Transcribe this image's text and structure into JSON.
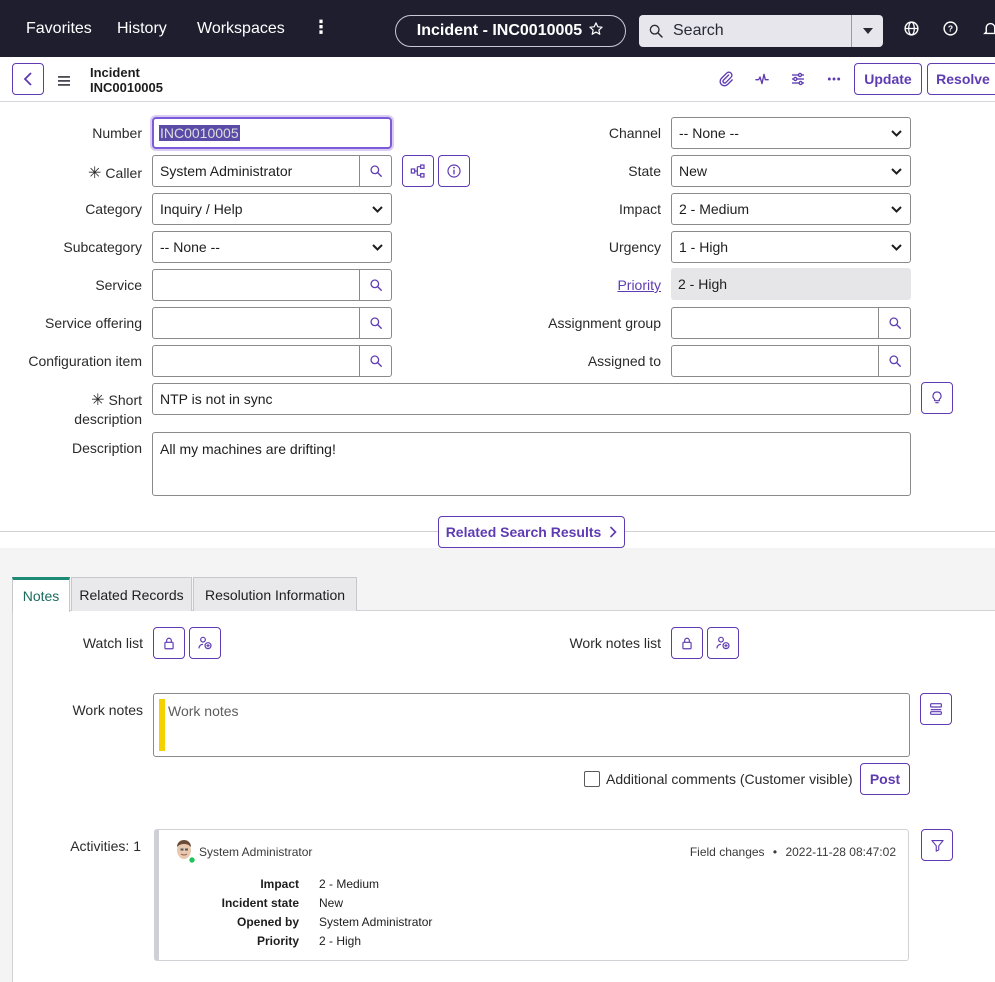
{
  "nav": {
    "favorites": "Favorites",
    "history": "History",
    "workspaces": "Workspaces",
    "more": "⋮",
    "record_pill": "Incident - INC0010005",
    "search_placeholder": "Search"
  },
  "subbar": {
    "record_type": "Incident",
    "record_number": "INC0010005",
    "update_label": "Update",
    "resolve_label": "Resolve"
  },
  "form": {
    "number_label": "Number",
    "number_value": "INC0010005",
    "caller_label": "Caller",
    "caller_value": "System Administrator",
    "category_label": "Category",
    "category_value": "Inquiry / Help",
    "subcategory_label": "Subcategory",
    "subcategory_value": "-- None --",
    "service_label": "Service",
    "service_value": "",
    "service_offering_label": "Service offering",
    "service_offering_value": "",
    "ci_label": "Configuration item",
    "ci_value": "",
    "channel_label": "Channel",
    "channel_value": "-- None --",
    "state_label": "State",
    "state_value": "New",
    "impact_label": "Impact",
    "impact_value": "2 - Medium",
    "urgency_label": "Urgency",
    "urgency_value": "1 - High",
    "priority_label": "Priority",
    "priority_value": "2 - High",
    "assignment_group_label": "Assignment group",
    "assignment_group_value": "",
    "assigned_to_label": "Assigned to",
    "assigned_to_value": "",
    "short_desc_label_1": "Short",
    "short_desc_label_2": "description",
    "short_desc_value": "NTP is not in sync",
    "description_label": "Description",
    "description_value": "All my machines are drifting!",
    "required_mark": "✳"
  },
  "related_search_label": "Related Search Results",
  "tabs": [
    {
      "label": "Notes"
    },
    {
      "label": "Related Records"
    },
    {
      "label": "Resolution Information"
    }
  ],
  "notes": {
    "watch_list_label": "Watch list",
    "work_notes_list_label": "Work notes list",
    "work_notes_label": "Work notes",
    "work_notes_placeholder": "Work notes",
    "additional_comments_label": "Additional comments (Customer visible)",
    "post_label": "Post",
    "activities_label": "Activities: 1"
  },
  "activity": {
    "user": "System Administrator",
    "type": "Field changes",
    "separator": "•",
    "timestamp": "2022-11-28 08:47:02",
    "rows": [
      {
        "key": "Impact",
        "value": "2 - Medium"
      },
      {
        "key": "Incident state",
        "value": "New"
      },
      {
        "key": "Opened by",
        "value": "System Administrator"
      },
      {
        "key": "Priority",
        "value": "2 - High"
      }
    ]
  },
  "colors": {
    "nav_bg": "#1e1e2e",
    "accent": "#5f3bb3",
    "tab_active": "#1c8a74",
    "work_notes_bar": "#f5d100"
  }
}
